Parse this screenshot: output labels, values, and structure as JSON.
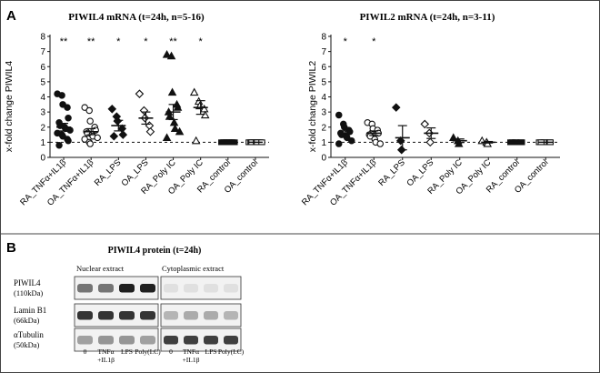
{
  "panel_a": {
    "label": "A",
    "charts": [
      {
        "type": "scatter",
        "title": "PIWIL4 mRNA (t=24h, n=5-16)",
        "ylabel": "x-fold change PIWIL4",
        "yticks": [
          "0",
          "1",
          "2",
          "3",
          "4",
          "5",
          "6",
          "7",
          "8"
        ],
        "ylim": [
          0,
          8
        ],
        "reference_line": 1,
        "categories": [
          "RA_TNFα+IL1β",
          "OA_TNFα+IL1β",
          "RA_LPS",
          "OA_LPS",
          "RA_Poly IC",
          "OA_Poly IC",
          "RA_control",
          "OA_control"
        ],
        "significance": [
          "**",
          "**",
          "*",
          "*",
          "**",
          "*",
          "",
          ""
        ],
        "series": [
          {
            "marker": "filled-circle",
            "points": [
              4.2,
              4.1,
              3.5,
              3.3,
              2.6,
              2.3,
              2.1,
              2.0,
              1.9,
              1.8,
              1.6,
              1.5,
              1.4,
              1.2,
              1.1,
              0.8
            ],
            "mean": 2.0,
            "sem": 0.25
          },
          {
            "marker": "open-circle",
            "points": [
              3.3,
              3.1,
              2.4,
              2.0,
              1.8,
              1.7,
              1.6,
              1.5,
              1.4,
              1.3,
              1.2,
              1.0,
              0.9
            ],
            "mean": 1.7,
            "sem": 0.2
          },
          {
            "marker": "filled-diamond",
            "points": [
              3.2,
              2.7,
              2.4,
              1.9,
              1.5,
              1.4
            ],
            "mean": 2.1,
            "sem": 0.35
          },
          {
            "marker": "open-diamond",
            "points": [
              4.2,
              3.1,
              2.6,
              2.1,
              1.7
            ],
            "mean": 2.6,
            "sem": 0.4
          },
          {
            "marker": "filled-triangle",
            "points": [
              6.8,
              6.7,
              4.3,
              3.5,
              3.3,
              3.0,
              2.7,
              2.3,
              1.9,
              1.7,
              1.3
            ],
            "mean": 3.0,
            "sem": 0.5
          },
          {
            "marker": "open-triangle",
            "points": [
              4.3,
              3.7,
              3.4,
              3.2,
              2.8,
              1.1
            ],
            "mean": 3.3,
            "sem": 0.45
          },
          {
            "marker": "filled-square",
            "points": [
              1,
              1,
              1,
              1,
              1,
              1,
              1,
              1,
              1,
              1
            ],
            "mean": 1.0,
            "sem": 0
          },
          {
            "marker": "open-square",
            "points": [
              1,
              1,
              1,
              1,
              1,
              1,
              1,
              1,
              1,
              1
            ],
            "mean": 1.0,
            "sem": 0
          }
        ]
      },
      {
        "type": "scatter",
        "title": "PIWIL2 mRNA (t=24h, n=3-11)",
        "ylabel": "x-fold change PIWIL2",
        "yticks": [
          "0",
          "1",
          "2",
          "3",
          "4",
          "5",
          "6",
          "7",
          "8"
        ],
        "ylim": [
          0,
          8
        ],
        "reference_line": 1,
        "categories": [
          "RA_TNFα+IL1β",
          "OA_TNFα+IL1β",
          "RA_LPS",
          "OA_LPS",
          "RA_Poly IC",
          "OA_Poly IC",
          "RA_control",
          "OA_control"
        ],
        "significance": [
          "*",
          "*",
          "",
          "",
          "",
          "",
          "",
          ""
        ],
        "series": [
          {
            "marker": "filled-circle",
            "points": [
              2.8,
              2.2,
              2.0,
              1.8,
              1.7,
              1.6,
              1.5,
              1.4,
              1.3,
              1.1,
              0.9
            ],
            "mean": 1.6,
            "sem": 0.15
          },
          {
            "marker": "open-circle",
            "points": [
              2.3,
              2.2,
              1.9,
              1.8,
              1.6,
              1.5,
              1.4,
              1.2,
              1.0,
              0.9
            ],
            "mean": 1.6,
            "sem": 0.15
          },
          {
            "marker": "filled-diamond",
            "points": [
              3.3,
              1.1,
              0.5
            ],
            "mean": 1.3,
            "sem": 0.8
          },
          {
            "marker": "open-diamond",
            "points": [
              2.2,
              1.6,
              1.0
            ],
            "mean": 1.6,
            "sem": 0.35
          },
          {
            "marker": "filled-triangle",
            "points": [
              1.3,
              1.1,
              0.9
            ],
            "mean": 1.1,
            "sem": 0.12
          },
          {
            "marker": "open-triangle",
            "points": [
              1.1,
              1.0,
              0.9
            ],
            "mean": 1.0,
            "sem": 0.05
          },
          {
            "marker": "filled-square",
            "points": [
              1,
              1,
              1,
              1,
              1,
              1
            ],
            "mean": 1.0,
            "sem": 0
          },
          {
            "marker": "open-square",
            "points": [
              1,
              1,
              1,
              1,
              1,
              1
            ],
            "mean": 1.0,
            "sem": 0
          }
        ]
      }
    ]
  },
  "panel_b": {
    "label": "B",
    "title": "PIWIL4 protein (t=24h)",
    "nuclear_label": "Nuclear extract",
    "cytoplasmic_label": "Cytoplasmic extract",
    "rows": [
      {
        "name": "PIWIL4",
        "size": "(110kDa)",
        "nuclear_bands": [
          0.55,
          0.55,
          0.95,
          0.95
        ],
        "cytoplasmic_bands": [
          0.05,
          0.05,
          0.05,
          0.05
        ]
      },
      {
        "name": "Lamin B1",
        "size": "(66kDa)",
        "nuclear_bands": [
          0.85,
          0.85,
          0.85,
          0.85
        ],
        "cytoplasmic_bands": [
          0.25,
          0.3,
          0.3,
          0.25
        ]
      },
      {
        "name": "αTubulin",
        "size": "(50kDa)",
        "nuclear_bands": [
          0.35,
          0.4,
          0.4,
          0.35
        ],
        "cytoplasmic_bands": [
          0.8,
          0.8,
          0.8,
          0.8
        ]
      }
    ],
    "lanes": [
      "0",
      "TNFα\n+IL1β",
      "LPS",
      "Poly(I:C)"
    ]
  }
}
